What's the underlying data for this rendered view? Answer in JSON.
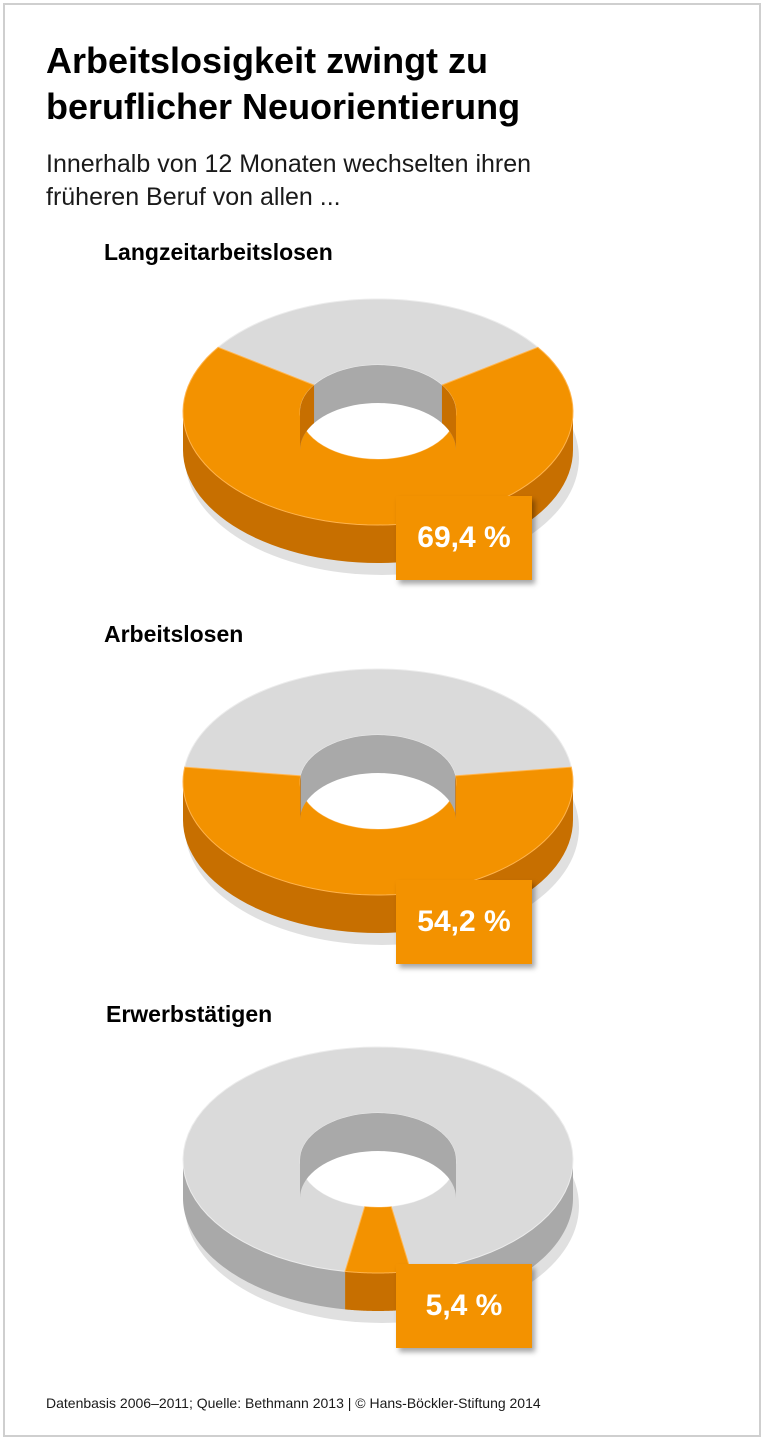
{
  "title": {
    "line1": "Arbeitslosigkeit zwingt zu",
    "line2": "beruflicher Neuorientierung"
  },
  "subtitle": {
    "line1": "Innerhalb von 12 Monaten wechselten ihren",
    "line2": "früheren Beruf von allen ..."
  },
  "colors": {
    "highlight": "#f39200",
    "highlight_dark": "#c76f00",
    "rest": "#dadada",
    "rest_dark": "#a9a9a9",
    "label_text": "#ffffff"
  },
  "chart_data": {
    "type": "pie",
    "unit": "%",
    "charts": [
      {
        "category": "Langzeitarbeitslosen",
        "value": 69.4,
        "value_label": "69,4 %"
      },
      {
        "category": "Arbeitslosen",
        "value": 54.2,
        "value_label": "54,2 %"
      },
      {
        "category": "Erwerbstätigen",
        "value": 5.4,
        "value_label": "5,4 %"
      }
    ]
  },
  "footer": "Datenbasis 2006–2011; Quelle: Bethmann 2013 | © Hans-Böckler-Stiftung 2014"
}
